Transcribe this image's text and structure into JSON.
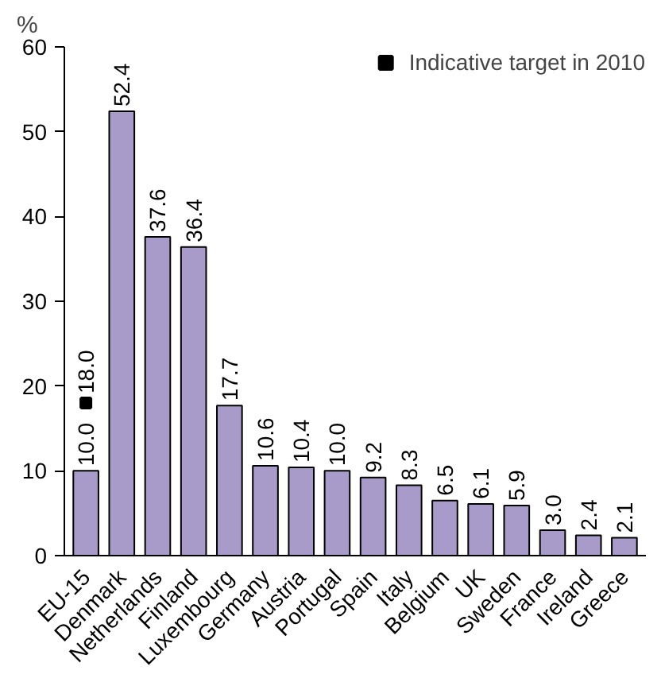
{
  "chart_data": {
    "type": "bar",
    "ylabel": "%",
    "categories": [
      "EU-15",
      "Denmark",
      "Netherlands",
      "Finland",
      "Luxembourg",
      "Germany",
      "Austria",
      "Portugal",
      "Spain",
      "Italy",
      "Belgium",
      "UK",
      "Sweden",
      "France",
      "Ireland",
      "Greece"
    ],
    "series": [
      {
        "color": "#a99bc9",
        "values": [
          10.0,
          52.4,
          37.6,
          36.4,
          17.7,
          10.6,
          10.4,
          10.0,
          9.2,
          8.3,
          6.5,
          6.1,
          5.9,
          3.0,
          2.4,
          2.1
        ],
        "value_labels": [
          "10.0",
          "52.4",
          "37.6",
          "36.4",
          "17.7",
          "10.6",
          "10.4",
          "10.0",
          "9.2",
          "8.3",
          "6.5",
          "6.1",
          "5.9",
          "3.0",
          "2.4",
          "2.1"
        ]
      },
      {
        "type": "scatter",
        "name": "Indicative target in 2010",
        "color": "#000000",
        "values": [
          18.0,
          null,
          null,
          null,
          null,
          null,
          null,
          null,
          null,
          null,
          null,
          null,
          null,
          null,
          null,
          null
        ],
        "value_labels": [
          "18.0",
          null,
          null,
          null,
          null,
          null,
          null,
          null,
          null,
          null,
          null,
          null,
          null,
          null,
          null,
          null
        ]
      }
    ],
    "marker": "square",
    "ylim": [
      0,
      60
    ],
    "yticks": [
      0,
      10,
      20,
      30,
      40,
      50,
      60
    ],
    "grid": false,
    "legend": "top right"
  }
}
